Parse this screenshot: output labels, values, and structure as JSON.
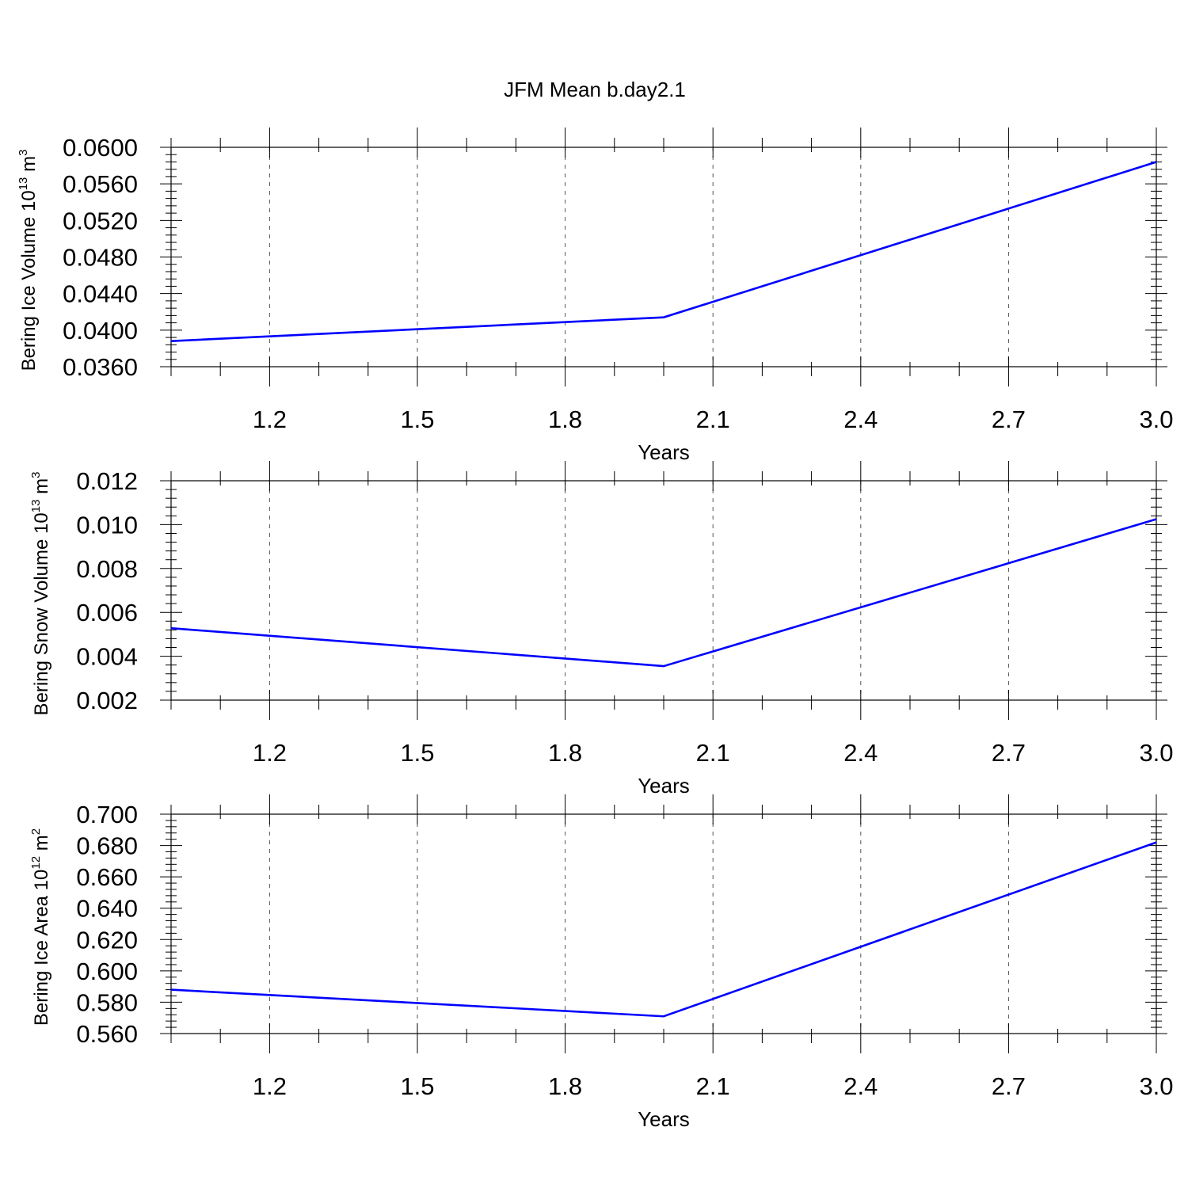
{
  "figure_title": "JFM Mean b.day2.1",
  "colors": {
    "line": "#0000ff",
    "axes": "#000000",
    "grid": "#555555",
    "background": "#ffffff"
  },
  "chart_data": [
    {
      "type": "line",
      "title": "JFM Mean b.day2.1",
      "xlabel": "Years",
      "ylabel": {
        "text": "Bering Ice Volume 10",
        "exponent": "13",
        "unit": " m",
        "unit_exponent": "3"
      },
      "x": [
        1,
        2,
        3
      ],
      "series": [
        {
          "values": [
            0.0388,
            0.0414,
            0.0584
          ]
        }
      ],
      "xlim": [
        1.0,
        3.0
      ],
      "ylim": [
        0.036,
        0.06
      ],
      "xticks": [
        1.2,
        1.5,
        1.8,
        2.1,
        2.4,
        2.7,
        3.0
      ],
      "xtick_labels": [
        "1.2",
        "1.5",
        "1.8",
        "2.1",
        "2.4",
        "2.7",
        "3.0"
      ],
      "yticks": [
        0.036,
        0.04,
        0.044,
        0.048,
        0.052,
        0.056,
        0.06
      ],
      "ytick_labels": [
        "0.0360",
        "0.0400",
        "0.0440",
        "0.0480",
        "0.0520",
        "0.0560",
        "0.0600"
      ],
      "grid": "x-dashed"
    },
    {
      "type": "line",
      "xlabel": "Years",
      "ylabel": {
        "text": "Bering Snow Volume 10",
        "exponent": "13",
        "unit": " m",
        "unit_exponent": "3"
      },
      "x": [
        1,
        2,
        3
      ],
      "series": [
        {
          "values": [
            0.00528,
            0.00355,
            0.01025
          ]
        }
      ],
      "xlim": [
        1.0,
        3.0
      ],
      "ylim": [
        0.002,
        0.012
      ],
      "xticks": [
        1.2,
        1.5,
        1.8,
        2.1,
        2.4,
        2.7,
        3.0
      ],
      "xtick_labels": [
        "1.2",
        "1.5",
        "1.8",
        "2.1",
        "2.4",
        "2.7",
        "3.0"
      ],
      "yticks": [
        0.002,
        0.004,
        0.006,
        0.008,
        0.01,
        0.012
      ],
      "ytick_labels": [
        "0.002",
        "0.004",
        "0.006",
        "0.008",
        "0.010",
        "0.012"
      ],
      "grid": "x-dashed"
    },
    {
      "type": "line",
      "xlabel": "Years",
      "ylabel": {
        "text": "Bering Ice Area 10",
        "exponent": "12",
        "unit": " m",
        "unit_exponent": "2"
      },
      "x": [
        1,
        2,
        3
      ],
      "series": [
        {
          "values": [
            0.588,
            0.571,
            0.682
          ]
        }
      ],
      "xlim": [
        1.0,
        3.0
      ],
      "ylim": [
        0.56,
        0.7
      ],
      "xticks": [
        1.2,
        1.5,
        1.8,
        2.1,
        2.4,
        2.7,
        3.0
      ],
      "xtick_labels": [
        "1.2",
        "1.5",
        "1.8",
        "2.1",
        "2.4",
        "2.7",
        "3.0"
      ],
      "yticks": [
        0.56,
        0.58,
        0.6,
        0.62,
        0.64,
        0.66,
        0.68,
        0.7
      ],
      "ytick_labels": [
        "0.560",
        "0.580",
        "0.600",
        "0.620",
        "0.640",
        "0.660",
        "0.680",
        "0.700"
      ],
      "grid": "x-dashed"
    }
  ]
}
